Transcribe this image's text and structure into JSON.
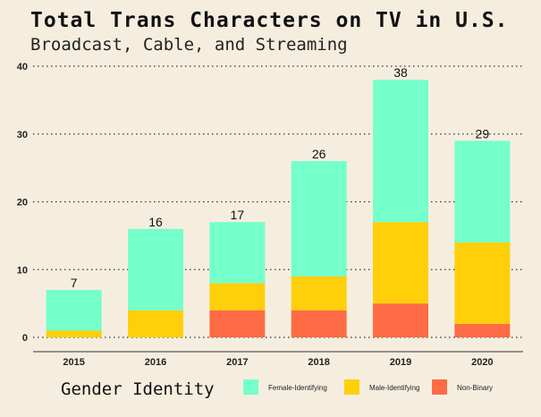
{
  "chart_data": {
    "type": "bar",
    "stacked": true,
    "title": "Total Trans Characters on TV in U.S.",
    "subtitle": "Broadcast, Cable, and Streaming",
    "xlabel": "",
    "ylabel": "",
    "ylim": [
      0,
      40
    ],
    "yticks": [
      0,
      10,
      20,
      30,
      40
    ],
    "grid": "horizontal dotted",
    "categories": [
      "2015",
      "2016",
      "2017",
      "2018",
      "2019",
      "2020"
    ],
    "series": [
      {
        "name": "Non-Binary",
        "color": "#ff6b45",
        "values": [
          0,
          0,
          4,
          4,
          5,
          2
        ]
      },
      {
        "name": "Male-Identifying",
        "color": "#ffcf0a",
        "values": [
          1,
          4,
          4,
          5,
          12,
          12
        ]
      },
      {
        "name": "Female-Identifying",
        "color": "#74ffcb",
        "values": [
          6,
          12,
          9,
          17,
          21,
          15
        ]
      }
    ],
    "totals": [
      "7",
      "16",
      "17",
      "26",
      "38",
      "29"
    ],
    "legend": {
      "title": "Gender Identity",
      "placement": "bottom",
      "order": [
        "Female-Identifying",
        "Male-Identifying",
        "Non-Binary"
      ]
    }
  }
}
